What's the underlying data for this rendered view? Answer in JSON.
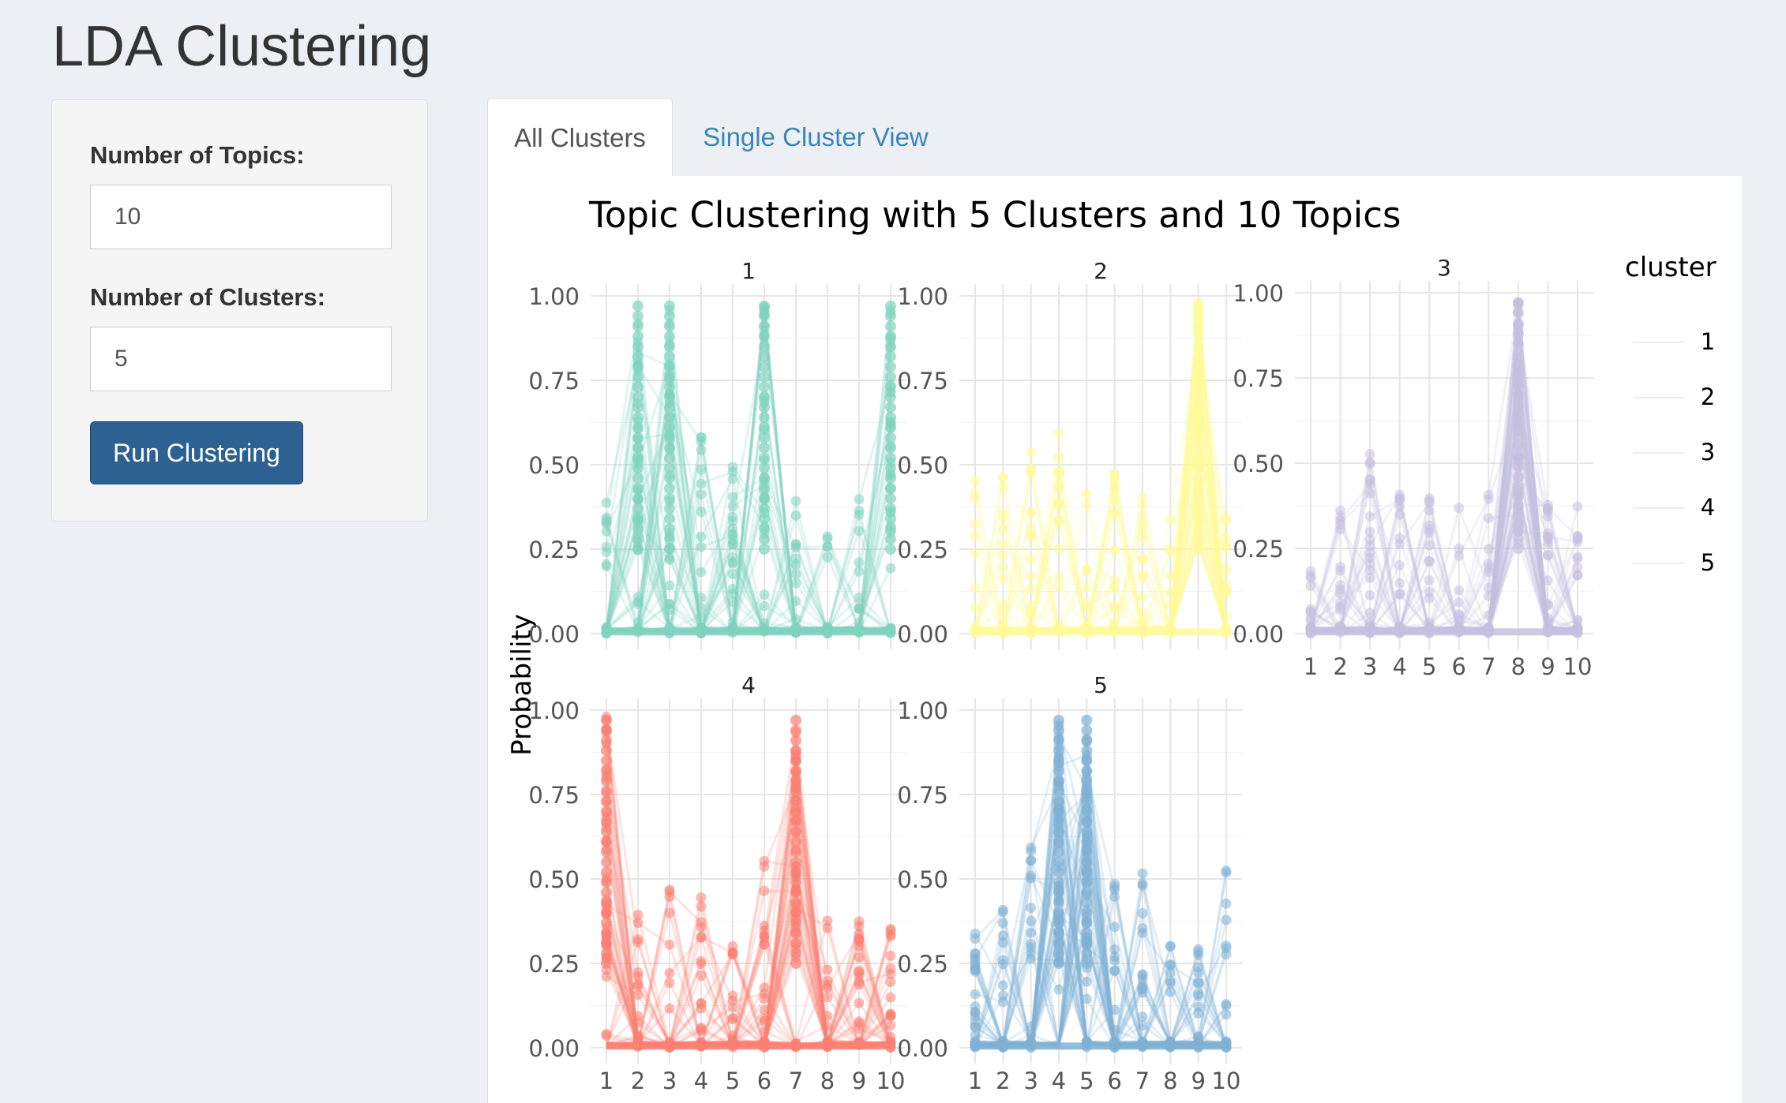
{
  "app": {
    "title": "LDA Clustering"
  },
  "sidebar": {
    "topics_label": "Number of Topics:",
    "topics_value": "10",
    "clusters_label": "Number of Clusters:",
    "clusters_value": "5",
    "run_button": "Run Clustering"
  },
  "tabs": [
    {
      "label": "All Clusters",
      "active": true
    },
    {
      "label": "Single Cluster View",
      "active": false
    }
  ],
  "colors": {
    "cluster_1": "#7fd3bd",
    "cluster_2": "#fffa99",
    "cluster_3": "#c6bfe0",
    "cluster_4": "#fb7f72",
    "cluster_5": "#7fb0d4",
    "accent": "#2c6192",
    "link": "#3a86b8"
  },
  "chart_data": {
    "type": "line",
    "title": "Topic Clustering with 5 Clusters and 10 Topics",
    "ylabel": "Probability",
    "xlabel": "",
    "legend_title": "cluster",
    "legend_placement": "right",
    "x_ticks": [
      "1",
      "2",
      "3",
      "4",
      "5",
      "6",
      "7",
      "8",
      "9",
      "10"
    ],
    "y_ticks": [
      "0.00",
      "0.25",
      "0.50",
      "0.75",
      "1.00"
    ],
    "ylim": [
      0,
      1
    ],
    "grid": true,
    "facets": [
      {
        "name": "1",
        "dominant_topics": [
          2,
          3,
          6,
          10
        ],
        "max_by_topic": [
          0.45,
          0.98,
          0.98,
          0.6,
          0.5,
          0.98,
          0.4,
          0.38,
          0.4,
          0.98
        ]
      },
      {
        "name": "2",
        "dominant_topics": [
          9
        ],
        "max_by_topic": [
          0.47,
          0.48,
          0.55,
          0.6,
          0.45,
          0.5,
          0.43,
          0.35,
          0.98,
          0.42
        ]
      },
      {
        "name": "3",
        "dominant_topics": [
          8
        ],
        "max_by_topic": [
          0.24,
          0.4,
          0.58,
          0.46,
          0.41,
          0.45,
          0.45,
          0.98,
          0.39,
          0.51
        ]
      },
      {
        "name": "4",
        "dominant_topics": [
          1,
          7
        ],
        "max_by_topic": [
          0.98,
          0.4,
          0.52,
          0.46,
          0.4,
          0.56,
          0.98,
          0.38,
          0.39,
          0.38
        ]
      },
      {
        "name": "5",
        "dominant_topics": [
          4,
          5
        ],
        "max_by_topic": [
          0.38,
          0.42,
          0.62,
          0.98,
          0.98,
          0.55,
          0.53,
          0.37,
          0.33,
          0.55
        ]
      }
    ]
  }
}
